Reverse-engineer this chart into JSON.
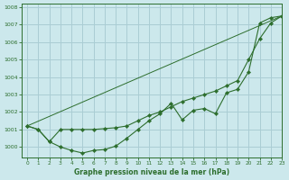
{
  "title": "Graphe pression niveau de la mer (hPa)",
  "background_color": "#cce8ec",
  "grid_color": "#aacdd4",
  "line_color": "#2d6e2d",
  "xlim": [
    -0.5,
    23
  ],
  "ylim": [
    999.4,
    1008.2
  ],
  "yticks": [
    1000,
    1001,
    1002,
    1003,
    1004,
    1005,
    1006,
    1007,
    1008
  ],
  "xticks": [
    0,
    1,
    2,
    3,
    4,
    5,
    6,
    7,
    8,
    9,
    10,
    11,
    12,
    13,
    14,
    15,
    16,
    17,
    18,
    19,
    20,
    21,
    22,
    23
  ],
  "series1_x": [
    0,
    1,
    2,
    3,
    4,
    5,
    6,
    7,
    8,
    9,
    10,
    11,
    12,
    13,
    14,
    15,
    16,
    17,
    18,
    19,
    20,
    21,
    22,
    23
  ],
  "series1_y": [
    1001.2,
    1001.0,
    1000.3,
    1000.0,
    999.8,
    999.65,
    999.8,
    999.85,
    1000.05,
    1000.5,
    1001.0,
    1001.5,
    1001.9,
    1002.5,
    1001.55,
    1002.1,
    1002.2,
    1001.9,
    1003.1,
    1003.3,
    1004.3,
    1007.1,
    1007.4,
    1007.5
  ],
  "series2_x": [
    0,
    1,
    2,
    3,
    4,
    5,
    6,
    7,
    8,
    9,
    10,
    11,
    12,
    13,
    14,
    15,
    16,
    17,
    18,
    19,
    20,
    21,
    22,
    23
  ],
  "series2_y": [
    1001.2,
    1001.0,
    1000.3,
    1001.0,
    1001.0,
    1001.0,
    1001.0,
    1001.05,
    1001.1,
    1001.2,
    1001.5,
    1001.8,
    1002.0,
    1002.3,
    1002.6,
    1002.8,
    1003.0,
    1003.2,
    1003.5,
    1003.8,
    1005.0,
    1006.2,
    1007.1,
    1007.5
  ],
  "series3_x": [
    0,
    23
  ],
  "series3_y": [
    1001.2,
    1007.5
  ]
}
